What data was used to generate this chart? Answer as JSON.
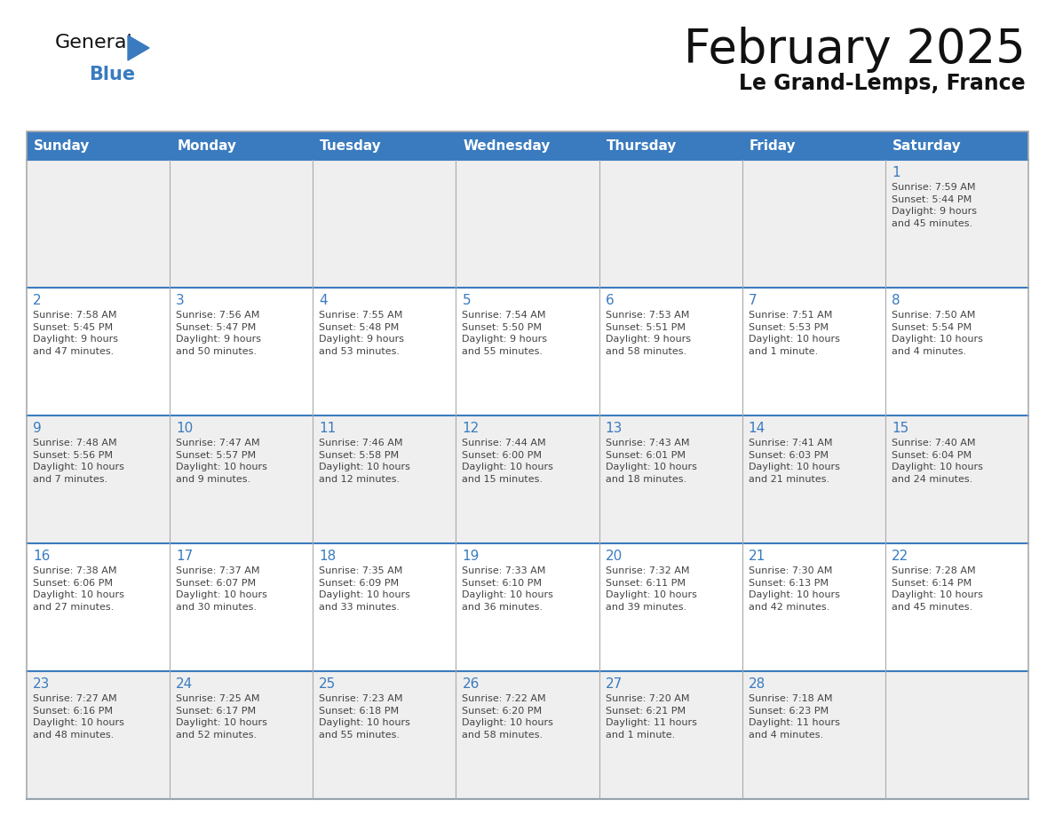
{
  "title": "February 2025",
  "subtitle": "Le Grand-Lemps, France",
  "header_color": "#3a7bbf",
  "header_text_color": "#ffffff",
  "cell_bg_even": "#efefef",
  "cell_bg_odd": "#ffffff",
  "day_number_color": "#3a7bbf",
  "info_text_color": "#444444",
  "border_color": "#3a7bbf",
  "divider_color": "#aaaaaa",
  "days_of_week": [
    "Sunday",
    "Monday",
    "Tuesday",
    "Wednesday",
    "Thursday",
    "Friday",
    "Saturday"
  ],
  "weeks": [
    [
      {
        "day": null,
        "info": ""
      },
      {
        "day": null,
        "info": ""
      },
      {
        "day": null,
        "info": ""
      },
      {
        "day": null,
        "info": ""
      },
      {
        "day": null,
        "info": ""
      },
      {
        "day": null,
        "info": ""
      },
      {
        "day": 1,
        "info": "Sunrise: 7:59 AM\nSunset: 5:44 PM\nDaylight: 9 hours\nand 45 minutes."
      }
    ],
    [
      {
        "day": 2,
        "info": "Sunrise: 7:58 AM\nSunset: 5:45 PM\nDaylight: 9 hours\nand 47 minutes."
      },
      {
        "day": 3,
        "info": "Sunrise: 7:56 AM\nSunset: 5:47 PM\nDaylight: 9 hours\nand 50 minutes."
      },
      {
        "day": 4,
        "info": "Sunrise: 7:55 AM\nSunset: 5:48 PM\nDaylight: 9 hours\nand 53 minutes."
      },
      {
        "day": 5,
        "info": "Sunrise: 7:54 AM\nSunset: 5:50 PM\nDaylight: 9 hours\nand 55 minutes."
      },
      {
        "day": 6,
        "info": "Sunrise: 7:53 AM\nSunset: 5:51 PM\nDaylight: 9 hours\nand 58 minutes."
      },
      {
        "day": 7,
        "info": "Sunrise: 7:51 AM\nSunset: 5:53 PM\nDaylight: 10 hours\nand 1 minute."
      },
      {
        "day": 8,
        "info": "Sunrise: 7:50 AM\nSunset: 5:54 PM\nDaylight: 10 hours\nand 4 minutes."
      }
    ],
    [
      {
        "day": 9,
        "info": "Sunrise: 7:48 AM\nSunset: 5:56 PM\nDaylight: 10 hours\nand 7 minutes."
      },
      {
        "day": 10,
        "info": "Sunrise: 7:47 AM\nSunset: 5:57 PM\nDaylight: 10 hours\nand 9 minutes."
      },
      {
        "day": 11,
        "info": "Sunrise: 7:46 AM\nSunset: 5:58 PM\nDaylight: 10 hours\nand 12 minutes."
      },
      {
        "day": 12,
        "info": "Sunrise: 7:44 AM\nSunset: 6:00 PM\nDaylight: 10 hours\nand 15 minutes."
      },
      {
        "day": 13,
        "info": "Sunrise: 7:43 AM\nSunset: 6:01 PM\nDaylight: 10 hours\nand 18 minutes."
      },
      {
        "day": 14,
        "info": "Sunrise: 7:41 AM\nSunset: 6:03 PM\nDaylight: 10 hours\nand 21 minutes."
      },
      {
        "day": 15,
        "info": "Sunrise: 7:40 AM\nSunset: 6:04 PM\nDaylight: 10 hours\nand 24 minutes."
      }
    ],
    [
      {
        "day": 16,
        "info": "Sunrise: 7:38 AM\nSunset: 6:06 PM\nDaylight: 10 hours\nand 27 minutes."
      },
      {
        "day": 17,
        "info": "Sunrise: 7:37 AM\nSunset: 6:07 PM\nDaylight: 10 hours\nand 30 minutes."
      },
      {
        "day": 18,
        "info": "Sunrise: 7:35 AM\nSunset: 6:09 PM\nDaylight: 10 hours\nand 33 minutes."
      },
      {
        "day": 19,
        "info": "Sunrise: 7:33 AM\nSunset: 6:10 PM\nDaylight: 10 hours\nand 36 minutes."
      },
      {
        "day": 20,
        "info": "Sunrise: 7:32 AM\nSunset: 6:11 PM\nDaylight: 10 hours\nand 39 minutes."
      },
      {
        "day": 21,
        "info": "Sunrise: 7:30 AM\nSunset: 6:13 PM\nDaylight: 10 hours\nand 42 minutes."
      },
      {
        "day": 22,
        "info": "Sunrise: 7:28 AM\nSunset: 6:14 PM\nDaylight: 10 hours\nand 45 minutes."
      }
    ],
    [
      {
        "day": 23,
        "info": "Sunrise: 7:27 AM\nSunset: 6:16 PM\nDaylight: 10 hours\nand 48 minutes."
      },
      {
        "day": 24,
        "info": "Sunrise: 7:25 AM\nSunset: 6:17 PM\nDaylight: 10 hours\nand 52 minutes."
      },
      {
        "day": 25,
        "info": "Sunrise: 7:23 AM\nSunset: 6:18 PM\nDaylight: 10 hours\nand 55 minutes."
      },
      {
        "day": 26,
        "info": "Sunrise: 7:22 AM\nSunset: 6:20 PM\nDaylight: 10 hours\nand 58 minutes."
      },
      {
        "day": 27,
        "info": "Sunrise: 7:20 AM\nSunset: 6:21 PM\nDaylight: 11 hours\nand 1 minute."
      },
      {
        "day": 28,
        "info": "Sunrise: 7:18 AM\nSunset: 6:23 PM\nDaylight: 11 hours\nand 4 minutes."
      },
      {
        "day": null,
        "info": ""
      }
    ]
  ],
  "logo_general_color": "#111111",
  "logo_blue_color": "#3a7bbf",
  "logo_triangle_color": "#3a7bbf"
}
